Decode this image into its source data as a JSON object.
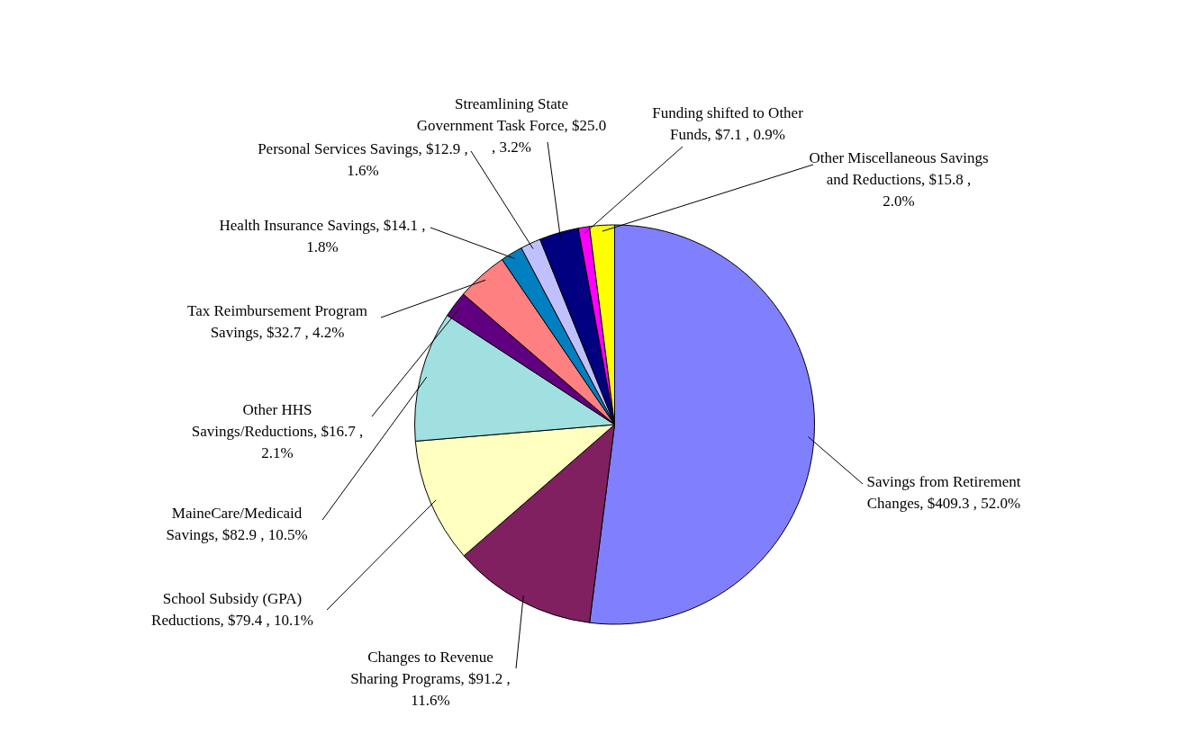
{
  "chart_data": {
    "type": "pie",
    "categories": [
      "Savings from Retirement Changes",
      "Changes to Revenue Sharing Programs",
      "School Subsidy (GPA) Reductions",
      "MaineCare/Medicaid Savings",
      "Other HHS Savings/Reductions",
      "Tax Reimbursement Program Savings",
      "Health Insurance Savings",
      "Personal Services Savings",
      "Streamlining State Government Task Force",
      "Funding shifted to Other Funds",
      "Other Miscellaneous Savings and Reductions"
    ],
    "values": [
      409.3,
      91.2,
      79.4,
      82.9,
      16.7,
      32.7,
      14.1,
      12.9,
      25.0,
      7.1,
      15.8
    ],
    "value_labels": [
      "$409.3 , 52.0%",
      "$91.2 , 11.6%",
      "$79.4 , 10.1%",
      "$82.9 , 10.5%",
      "$16.7 , 2.1%",
      "$32.7 , 4.2%",
      "$14.1 , 1.8%",
      "$12.9 , 1.6%",
      "$25.0 , 3.2%",
      "$7.1 , 0.9%",
      "$15.8 , 2.0%"
    ],
    "colors": [
      "#8080ff",
      "#802060",
      "#ffffc0",
      "#a0e0e0",
      "#600080",
      "#ff8080",
      "#0080c0",
      "#c0c0ff",
      "#000080",
      "#ff00ff",
      "#ffff00"
    ],
    "legend": false
  }
}
